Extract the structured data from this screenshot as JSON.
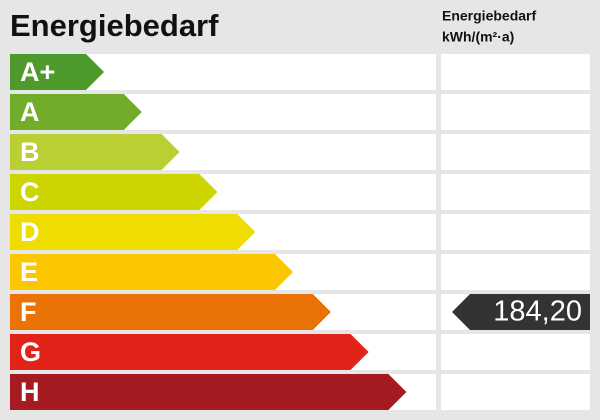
{
  "header": {
    "title": "Energiebedarf",
    "column_title": "Energiebedarf",
    "column_unit": "kWh/(m²·a)"
  },
  "classes": [
    {
      "label": "A+",
      "color": "#4f9a2c"
    },
    {
      "label": "A",
      "color": "#72ac2b"
    },
    {
      "label": "B",
      "color": "#b9cf34"
    },
    {
      "label": "C",
      "color": "#cdd500"
    },
    {
      "label": "D",
      "color": "#efdc00"
    },
    {
      "label": "E",
      "color": "#fcc700"
    },
    {
      "label": "F",
      "color": "#ea7206",
      "value": "184,20"
    },
    {
      "label": "G",
      "color": "#e2231a"
    },
    {
      "label": "H",
      "color": "#a61b22"
    }
  ]
}
